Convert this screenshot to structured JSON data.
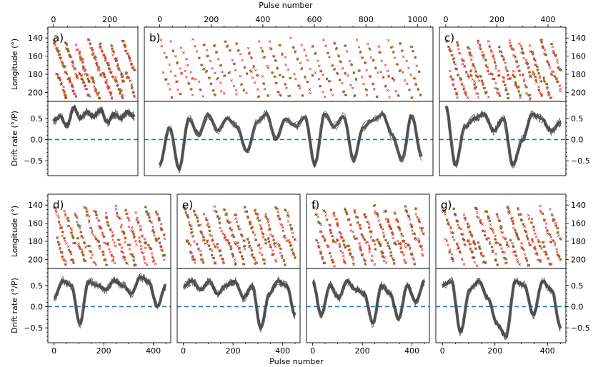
{
  "chart_data": {
    "type": "scatter",
    "top_axis_label": "Pulse number",
    "bottom_axis_label": "Pulse number",
    "ylabel_longitude": "Longitude (°)",
    "ylabel_drift": "Drift rate (°/P)",
    "colors": {
      "cross": "#e8281e",
      "dot": "#5a9a3a",
      "thin": "#555555",
      "thick": "#444444",
      "zero_line": "#1f77b4"
    },
    "panels": [
      {
        "label": "a)",
        "xlim": [
          -20,
          300
        ],
        "xticks": [
          0,
          200
        ],
        "xticks_pos": "top",
        "n_bands": 7,
        "phase": 0.1,
        "drift_knots": [
          0.45,
          0.55,
          0.3,
          0.75,
          0.5,
          0.65,
          0.55,
          0.7,
          0.4,
          0.6,
          0.5,
          0.65,
          0.55
        ]
      },
      {
        "label": "b)",
        "xlim": [
          -60,
          1060
        ],
        "xticks": [
          0,
          200,
          400,
          600,
          800,
          1000
        ],
        "xticks_pos": "top",
        "n_bands": 24,
        "phase": 0.3,
        "drift_knots": [
          -0.6,
          0.3,
          -0.7,
          0.5,
          0.1,
          0.6,
          0.2,
          0.5,
          0.3,
          -0.3,
          0.4,
          0.6,
          0.0,
          0.5,
          0.3,
          0.55,
          -0.6,
          0.6,
          0.3,
          0.55,
          -0.5,
          0.3,
          0.45,
          0.6,
          0.1,
          -0.5,
          0.6,
          -0.4
        ]
      },
      {
        "label": "c)",
        "xlim": [
          -25,
          470
        ],
        "xticks": [
          0,
          200,
          400
        ],
        "xticks_pos": "top",
        "n_bands": 11,
        "phase": 0.6,
        "drift_knots": [
          0.8,
          -0.6,
          0.3,
          0.5,
          0.6,
          0.2,
          0.5,
          -0.6,
          0.0,
          0.6,
          0.5,
          0.2,
          0.4
        ]
      },
      {
        "label": "d)",
        "xlim": [
          -25,
          470
        ],
        "xticks": [
          0,
          200,
          400
        ],
        "xticks_pos": "bottom",
        "n_bands": 11,
        "phase": 0.2,
        "drift_knots": [
          0.2,
          0.6,
          0.5,
          -0.4,
          0.6,
          0.5,
          0.4,
          0.6,
          0.5,
          0.3,
          0.7,
          0.6,
          0.0,
          0.5
        ]
      },
      {
        "label": "e)",
        "xlim": [
          -25,
          470
        ],
        "xticks": [
          0,
          200,
          400
        ],
        "xticks_pos": "bottom",
        "n_bands": 11,
        "phase": 0.5,
        "drift_knots": [
          0.5,
          0.6,
          0.4,
          0.6,
          0.3,
          0.5,
          0.6,
          0.2,
          0.5,
          -0.5,
          0.3,
          0.6,
          0.5,
          -0.2
        ]
      },
      {
        "label": "f)",
        "xlim": [
          -25,
          470
        ],
        "xticks": [
          0,
          200,
          400
        ],
        "xticks_pos": "bottom",
        "n_bands": 11,
        "phase": 0.8,
        "drift_knots": [
          0.6,
          -0.2,
          0.5,
          0.2,
          0.6,
          0.4,
          0.3,
          -0.4,
          0.5,
          0.3,
          -0.3,
          0.5,
          0.1,
          0.6
        ]
      },
      {
        "label": "g)",
        "xlim": [
          -25,
          470
        ],
        "xticks": [
          0,
          200,
          400
        ],
        "xticks_pos": "bottom",
        "n_bands": 11,
        "phase": 0.4,
        "drift_knots": [
          0.5,
          0.6,
          -0.6,
          0.4,
          0.6,
          0.2,
          -0.4,
          -0.7,
          0.6,
          0.5,
          -0.2,
          0.6,
          0.4,
          -0.5
        ]
      }
    ],
    "longitude_axis": {
      "ylim": [
        210,
        128
      ],
      "ticks": [
        140,
        160,
        180,
        200
      ]
    },
    "drift_axis": {
      "ylim": [
        -0.85,
        0.9
      ],
      "ticks": [
        0.5,
        0.0,
        -0.5
      ],
      "tick_labels": [
        "0.5",
        "0.0",
        "−0.5"
      ]
    }
  }
}
